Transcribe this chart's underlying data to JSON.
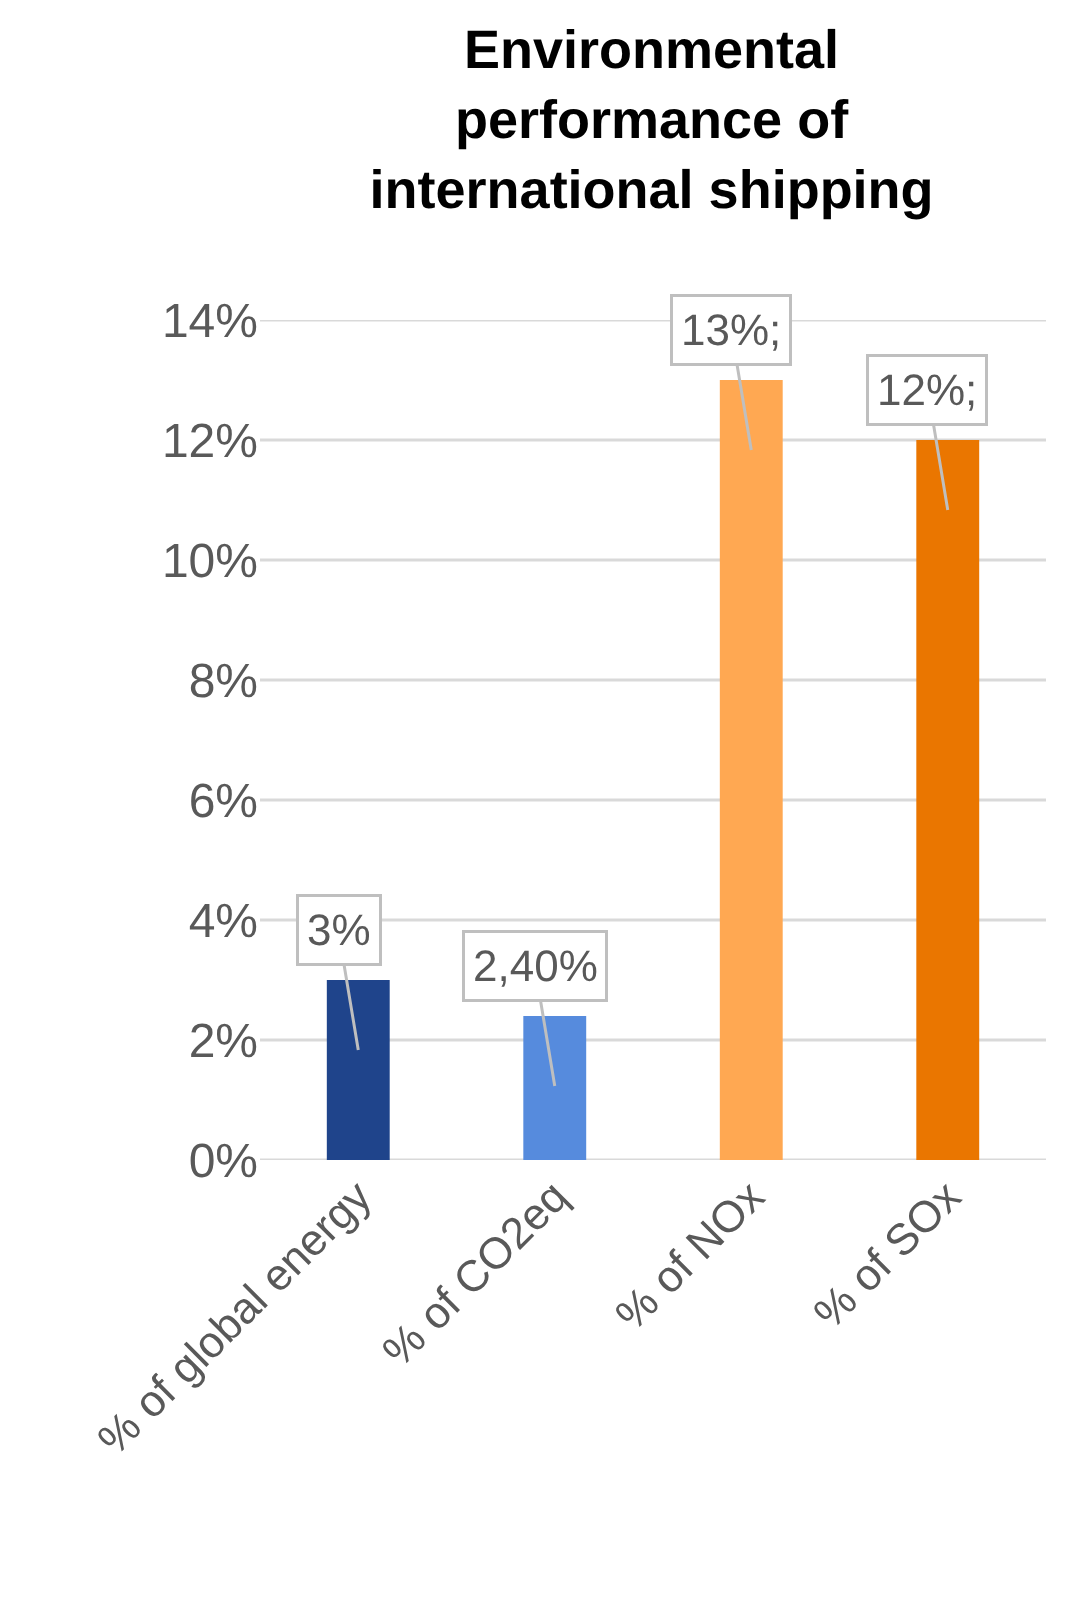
{
  "chart_data": {
    "type": "bar",
    "title": "Environmental performance of international shipping",
    "categories": [
      "% of global energy",
      "% of CO2eq",
      "% of NOx",
      "% of SOx"
    ],
    "values": [
      3,
      2.4,
      13,
      12
    ],
    "value_labels": [
      "3%",
      "2,40%",
      "13%;",
      "12%;"
    ],
    "colors": [
      "#1f448b",
      "#568bdd",
      "#ffa852",
      "#ea7600"
    ],
    "ylim": [
      0,
      14
    ],
    "yticks": [
      {
        "value": 0,
        "label": "0%"
      },
      {
        "value": 2,
        "label": "2%"
      },
      {
        "value": 4,
        "label": "4%"
      },
      {
        "value": 6,
        "label": "6%"
      },
      {
        "value": 8,
        "label": "8%"
      },
      {
        "value": 10,
        "label": "10%"
      },
      {
        "value": 12,
        "label": "12%"
      },
      {
        "value": 14,
        "label": "14%"
      }
    ],
    "grid": "y"
  }
}
